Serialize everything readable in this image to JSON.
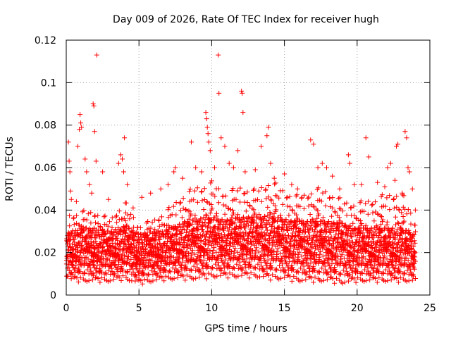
{
  "chart_data": {
    "type": "scatter",
    "title": "Day 009 of 2026, Rate Of TEC Index for receiver hugh",
    "xlabel": "GPS time / hours",
    "ylabel": "ROTI / TECUs",
    "xlim": [
      0,
      25
    ],
    "ylim": [
      0,
      0.12
    ],
    "xticks": [
      0,
      5,
      10,
      15,
      20,
      25
    ],
    "xtick_labels": [
      "0",
      "5",
      "10",
      "15",
      "20",
      "25"
    ],
    "yticks": [
      0,
      0.02,
      0.04,
      0.06,
      0.08,
      0.1,
      0.12
    ],
    "ytick_labels": [
      "0",
      "0.02",
      "0.04",
      "0.06",
      "0.08",
      "0.1",
      "0.12"
    ],
    "grid": true,
    "marker": "+",
    "series": [
      {
        "name": "ROTI",
        "color": "#ff0000",
        "points": [
          [
            0.15,
            0.072
          ],
          [
            0.2,
            0.063
          ],
          [
            0.25,
            0.058
          ],
          [
            0.3,
            0.049
          ],
          [
            0.35,
            0.045
          ],
          [
            0.7,
            0.044
          ],
          [
            0.8,
            0.07
          ],
          [
            0.9,
            0.078
          ],
          [
            0.95,
            0.085
          ],
          [
            1.0,
            0.081
          ],
          [
            1.05,
            0.079
          ],
          [
            1.3,
            0.064
          ],
          [
            1.4,
            0.058
          ],
          [
            1.6,
            0.052
          ],
          [
            1.75,
            0.048
          ],
          [
            1.85,
            0.09
          ],
          [
            1.9,
            0.089
          ],
          [
            1.95,
            0.077
          ],
          [
            2.05,
            0.063
          ],
          [
            2.1,
            0.113
          ],
          [
            2.5,
            0.058
          ],
          [
            2.9,
            0.045
          ],
          [
            3.6,
            0.062
          ],
          [
            3.75,
            0.066
          ],
          [
            3.85,
            0.064
          ],
          [
            3.95,
            0.058
          ],
          [
            4.0,
            0.074
          ],
          [
            4.2,
            0.052
          ],
          [
            4.6,
            0.041
          ],
          [
            5.2,
            0.046
          ],
          [
            5.8,
            0.048
          ],
          [
            6.5,
            0.05
          ],
          [
            7.0,
            0.052
          ],
          [
            7.4,
            0.058
          ],
          [
            7.5,
            0.06
          ],
          [
            8.0,
            0.055
          ],
          [
            8.6,
            0.072
          ],
          [
            8.9,
            0.06
          ],
          [
            9.3,
            0.058
          ],
          [
            9.6,
            0.086
          ],
          [
            9.65,
            0.083
          ],
          [
            9.7,
            0.079
          ],
          [
            9.75,
            0.076
          ],
          [
            9.8,
            0.072
          ],
          [
            9.9,
            0.068
          ],
          [
            10.2,
            0.06
          ],
          [
            10.45,
            0.113
          ],
          [
            10.5,
            0.095
          ],
          [
            10.65,
            0.074
          ],
          [
            10.9,
            0.07
          ],
          [
            11.2,
            0.062
          ],
          [
            11.5,
            0.06
          ],
          [
            11.8,
            0.068
          ],
          [
            12.05,
            0.096
          ],
          [
            12.1,
            0.095
          ],
          [
            12.15,
            0.086
          ],
          [
            12.3,
            0.058
          ],
          [
            13.0,
            0.059
          ],
          [
            13.4,
            0.07
          ],
          [
            13.8,
            0.075
          ],
          [
            13.9,
            0.079
          ],
          [
            14.05,
            0.062
          ],
          [
            14.3,
            0.055
          ],
          [
            15.0,
            0.057
          ],
          [
            15.5,
            0.052
          ],
          [
            15.9,
            0.05
          ],
          [
            16.2,
            0.046
          ],
          [
            16.8,
            0.073
          ],
          [
            17.0,
            0.071
          ],
          [
            17.3,
            0.06
          ],
          [
            17.6,
            0.062
          ],
          [
            17.9,
            0.06
          ],
          [
            18.3,
            0.056
          ],
          [
            18.8,
            0.05
          ],
          [
            19.4,
            0.066
          ],
          [
            19.5,
            0.062
          ],
          [
            19.8,
            0.052
          ],
          [
            20.3,
            0.052
          ],
          [
            20.6,
            0.074
          ],
          [
            20.8,
            0.065
          ],
          [
            21.4,
            0.053
          ],
          [
            21.9,
            0.051
          ],
          [
            22.1,
            0.06
          ],
          [
            22.3,
            0.062
          ],
          [
            22.6,
            0.054
          ],
          [
            22.7,
            0.07
          ],
          [
            22.8,
            0.071
          ],
          [
            23.1,
            0.048
          ],
          [
            23.3,
            0.077
          ],
          [
            23.4,
            0.074
          ],
          [
            23.5,
            0.06
          ],
          [
            23.6,
            0.058
          ],
          [
            23.8,
            0.05
          ],
          [
            24.0,
            0.04
          ]
        ],
        "density_envelope": {
          "description": "dense cloud of points sampled every ~0.02 h; upper bound per hour",
          "hours": [
            0,
            1,
            2,
            3,
            4,
            5,
            6,
            7,
            8,
            9,
            10,
            11,
            12,
            13,
            14,
            15,
            16,
            17,
            18,
            19,
            20,
            21,
            22,
            23,
            24
          ],
          "upper": [
            0.038,
            0.04,
            0.04,
            0.036,
            0.045,
            0.033,
            0.036,
            0.041,
            0.048,
            0.052,
            0.054,
            0.049,
            0.052,
            0.05,
            0.055,
            0.05,
            0.047,
            0.051,
            0.05,
            0.045,
            0.044,
            0.046,
            0.048,
            0.05,
            0.035
          ],
          "lower": [
            0.007,
            0.006,
            0.006,
            0.006,
            0.007,
            0.005,
            0.006,
            0.007,
            0.007,
            0.007,
            0.008,
            0.008,
            0.008,
            0.008,
            0.007,
            0.007,
            0.006,
            0.006,
            0.006,
            0.005,
            0.006,
            0.006,
            0.006,
            0.006,
            0.006
          ],
          "typical": [
            0.015,
            0.016,
            0.016,
            0.015,
            0.017,
            0.014,
            0.015,
            0.016,
            0.018,
            0.019,
            0.02,
            0.019,
            0.02,
            0.02,
            0.02,
            0.019,
            0.018,
            0.018,
            0.018,
            0.017,
            0.016,
            0.016,
            0.016,
            0.016,
            0.014
          ]
        }
      }
    ]
  }
}
